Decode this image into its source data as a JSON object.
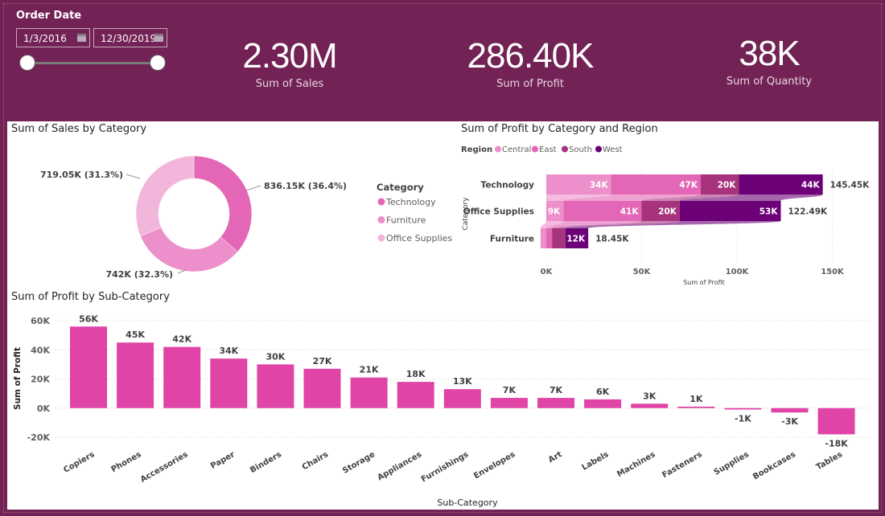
{
  "header": {
    "slicer_title": "Order Date",
    "start_date": "1/3/2016",
    "end_date": "12/30/2019",
    "slider_range": [
      0,
      1
    ],
    "kpis": [
      {
        "value": "2.30M",
        "label": "Sum of Sales"
      },
      {
        "value": "286.40K",
        "label": "Sum of Profit"
      },
      {
        "value": "38K",
        "label": "Sum of Quantity"
      }
    ]
  },
  "colors": {
    "background": "#722254",
    "bar": "#e044a7",
    "technology": "#e466b6",
    "furniture": "#ec8fcb",
    "office_supplies": "#f2b6db",
    "central": "#ec8fcb",
    "east": "#e466b6",
    "south": "#a8337d",
    "west": "#6b0077"
  },
  "chart_data": [
    {
      "type": "pie",
      "title": "Sum of Sales by Category",
      "legend_title": "Category",
      "legend_position": "right",
      "categories": [
        "Technology",
        "Furniture",
        "Office Supplies"
      ],
      "values": [
        836.15,
        742.0,
        719.05
      ],
      "labels": [
        "836.15K (36.4%)",
        "742K (32.3%)",
        "719.05K (31.3%)"
      ],
      "donut": true
    },
    {
      "type": "bar",
      "orientation": "horizontal",
      "stacked": true,
      "title": "Sum of Profit by Category and Region",
      "legend_title": "Region",
      "legend_position": "top-left",
      "categories": [
        "Technology",
        "Office Supplies",
        "Furniture"
      ],
      "series": [
        {
          "name": "Central",
          "values": [
            34,
            9,
            -3
          ],
          "labels": [
            "34K",
            "9K",
            ""
          ]
        },
        {
          "name": "East",
          "values": [
            47,
            41,
            3
          ],
          "labels": [
            "47K",
            "41K",
            ""
          ]
        },
        {
          "name": "South",
          "values": [
            20,
            20,
            7
          ],
          "labels": [
            "20K",
            "20K",
            ""
          ]
        },
        {
          "name": "West",
          "values": [
            44,
            53,
            12
          ],
          "labels": [
            "44K",
            "53K",
            "12K"
          ]
        }
      ],
      "totals": [
        "145.45K",
        "122.49K",
        "18.45K"
      ],
      "xlabel": "Sum of Profit",
      "ylabel": "Category",
      "xticks": [
        "0K",
        "50K",
        "100K",
        "150K"
      ],
      "xlim": [
        0,
        160
      ]
    },
    {
      "type": "bar",
      "title": "Sum of Profit by Sub-Category",
      "xlabel": "Sub-Category",
      "ylabel": "Sum of Profit",
      "categories": [
        "Copiers",
        "Phones",
        "Accessories",
        "Paper",
        "Binders",
        "Chairs",
        "Storage",
        "Appliances",
        "Furnishings",
        "Envelopes",
        "Art",
        "Labels",
        "Machines",
        "Fasteners",
        "Supplies",
        "Bookcases",
        "Tables"
      ],
      "values": [
        56,
        45,
        42,
        34,
        30,
        27,
        21,
        18,
        13,
        7,
        7,
        6,
        3,
        1,
        -1,
        -3,
        -18
      ],
      "labels": [
        "56K",
        "45K",
        "42K",
        "34K",
        "30K",
        "27K",
        "21K",
        "18K",
        "13K",
        "7K",
        "7K",
        "6K",
        "3K",
        "1K",
        "-1K",
        "-3K",
        "-18K"
      ],
      "yticks": [
        "60K",
        "40K",
        "20K",
        "0K",
        "-20K"
      ],
      "ylim": [
        -20,
        60
      ],
      "grid": true
    }
  ]
}
